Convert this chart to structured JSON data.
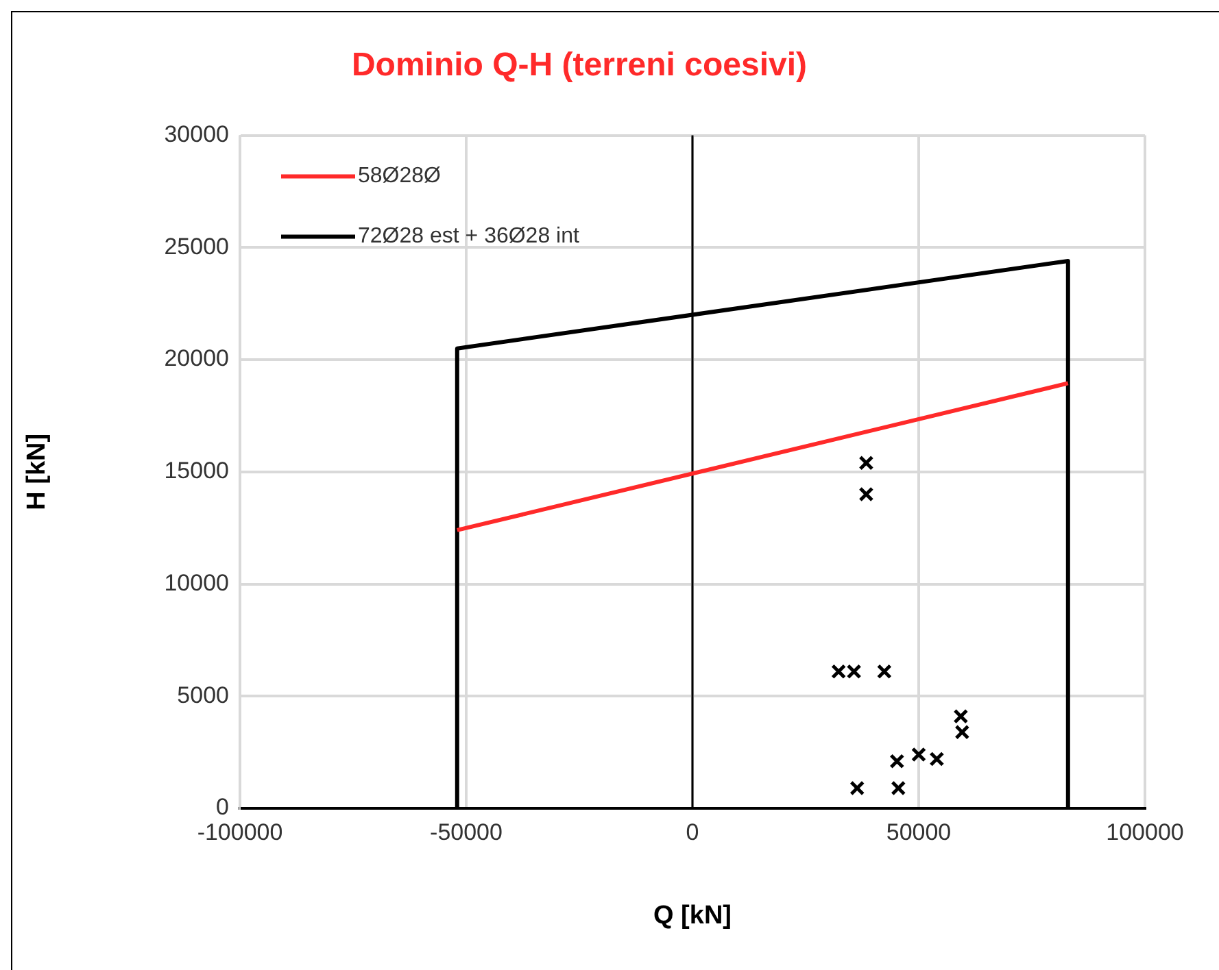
{
  "chart_data": {
    "type": "scatter",
    "title": "Dominio Q-H (terreni coesivi)",
    "xlabel": "Q [kN]",
    "ylabel": "H [kN]",
    "xlim": [
      -100000,
      100000
    ],
    "xticks": [
      -100000,
      -50000,
      0,
      50000,
      100000
    ],
    "ylim": [
      0,
      30000
    ],
    "yticks": [
      0,
      5000,
      10000,
      15000,
      20000,
      25000,
      30000
    ],
    "grid": true,
    "legend": "top left",
    "ref_lines": [
      {
        "axis": "x",
        "value": 0,
        "color": "#000000"
      }
    ],
    "series": [
      {
        "name": "58Ø28Ø",
        "type": "line",
        "color": "#ff2a2a",
        "marker": "none",
        "x": [
          -52000,
          83000
        ],
        "values": [
          12400,
          18950
        ]
      },
      {
        "name": "72Ø28 est + 36Ø28 int",
        "type": "line",
        "color": "#000000",
        "marker": "none",
        "x": [
          -52000,
          -52000,
          83000,
          83000
        ],
        "values": [
          0,
          20500,
          24400,
          0
        ]
      },
      {
        "color": "#000000",
        "marker": "cross",
        "x": [
          38400,
          38400,
          32300,
          35700,
          42400,
          59300,
          59600,
          50000,
          54000,
          45200,
          36400,
          45500
        ],
        "values": [
          15400,
          14000,
          6100,
          6100,
          6100,
          4100,
          3400,
          2400,
          2200,
          2100,
          900,
          900
        ]
      }
    ]
  }
}
